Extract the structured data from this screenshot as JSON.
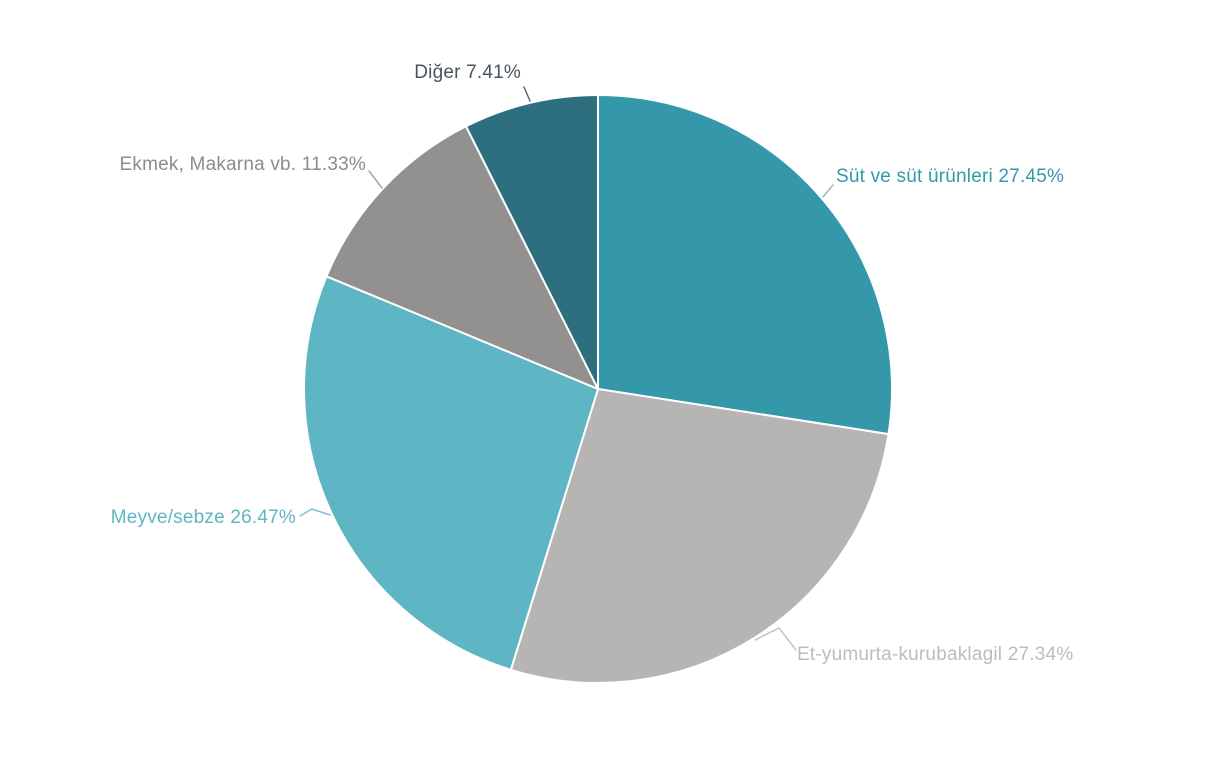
{
  "background": "#ffffff",
  "chart_data": {
    "type": "pie",
    "title": "",
    "unit": "%",
    "start_angle_deg": 0,
    "direction": "clockwise",
    "legend": "none",
    "slice_border_color": "#ffffff",
    "slices": [
      {
        "id": "sut-ve-sut-urunleri",
        "label": "Süt ve süt ürünleri",
        "value": 27.45,
        "display": "Süt ve süt ürünleri 27.45%",
        "color": "#3598aa",
        "label_color": "#3598aa",
        "connector_color": "#8fbfca"
      },
      {
        "id": "et-yumurta-kurubaklagil",
        "label": "Et-yumurta-kurubaklagil",
        "value": 27.34,
        "display": "Et-yumurta-kurubaklagil 27.34%",
        "color": "#b7b5b4",
        "label_color": "#bfbcba",
        "connector_color": "#c6c3c1"
      },
      {
        "id": "meyve-sebze",
        "label": "Meyve/sebze",
        "value": 26.47,
        "display": "Meyve/sebze 26.47%",
        "color": "#5eb5c3",
        "label_color": "#5eb5c3",
        "connector_color": "#7cc3cf"
      },
      {
        "id": "ekmek-makarna-vb",
        "label": "Ekmek, Makarna vb.",
        "value": 11.33,
        "display": "Ekmek, Makarna vb. 11.33%",
        "color": "#939090",
        "label_color": "#8f8b89",
        "connector_color": "#a8a4a2"
      },
      {
        "id": "diger",
        "label": "Diğer",
        "value": 7.41,
        "display": "Diğer 7.41%",
        "color": "#2d6f7e",
        "label_color": "#47565e",
        "connector_color": "#5a6b72"
      }
    ]
  }
}
